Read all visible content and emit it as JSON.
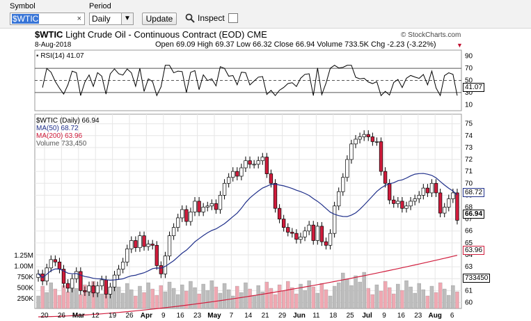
{
  "controls": {
    "symbol_label": "Symbol",
    "symbol_value": "$WTIC",
    "symbol_clear": "×",
    "period_label": "Period",
    "period_value": "Daily",
    "update_label": "Update",
    "inspect_label": "Inspect",
    "inspect_checked": false
  },
  "header": {
    "ticker": "$WTIC",
    "name": "Light Crude Oil - Continuous Contract (EOD)",
    "exchange": "CME",
    "copyright": "© StockCharts.com",
    "date": "8-Aug-2018",
    "ohlc": "Open 69.09  High 69.37  Low 66.32  Close 66.94  Volume 733.5K  Chg -2.23 (-3.22%)"
  },
  "rsi": {
    "label": "RSI(14) 41.07",
    "value_box": "41.07",
    "ticks": [
      "90",
      "70",
      "50",
      "30",
      "10"
    ]
  },
  "legend": {
    "price": "$WTIC (Daily) 66.94",
    "ma50": "MA(50) 68.72",
    "ma200": "MA(200) 63.96",
    "volume": "Volume 733,450"
  },
  "value_boxes": {
    "ma50": "68.72",
    "close": "66.94",
    "ma200": "63.96",
    "volume": "733450"
  },
  "price_ticks": [
    "75",
    "74",
    "73",
    "72",
    "71",
    "70",
    "69",
    "68",
    "67",
    "66",
    "65",
    "64",
    "63",
    "62",
    "61",
    "60"
  ],
  "volume_ticks": [
    "1.25M",
    "1.00M",
    "750K",
    "500K",
    "250K"
  ],
  "x_labels": [
    "20",
    "26",
    "Mar",
    "12",
    "19",
    "26",
    "Apr",
    "9",
    "16",
    "23",
    "May",
    "7",
    "14",
    "21",
    "29",
    "Jun",
    "11",
    "18",
    "25",
    "Jul",
    "9",
    "16",
    "23",
    "Aug",
    "6"
  ],
  "colors": {
    "up": "#ffffff",
    "down": "#d01c3c",
    "ma50": "#1f2f8a",
    "ma200": "#d01c3c",
    "vol_up": "#bdbdbd",
    "vol_down": "#f0a8b2",
    "grid": "#e6e6e6"
  },
  "chart_data": {
    "type": "candlestick",
    "title": "$WTIC Light Crude Oil - Continuous Contract (EOD) CME",
    "ylim": [
      59.5,
      75.8
    ],
    "series": [
      {
        "name": "$WTIC (Daily)",
        "close": [
          62.4,
          61.8,
          62.9,
          63.6,
          63.4,
          62.8,
          61.6,
          61.2,
          62.0,
          62.6,
          61.0,
          60.9,
          61.4,
          60.8,
          61.4,
          61.9,
          60.7,
          61.3,
          62.3,
          62.8,
          63.4,
          64.5,
          65.2,
          64.6,
          65.6,
          64.7,
          64.9,
          64.8,
          63.1,
          62.4,
          63.9,
          65.6,
          66.3,
          67.1,
          67.8,
          66.8,
          67.6,
          68.5,
          67.6,
          68.0,
          68.1,
          68.3,
          67.8,
          69.0,
          70.0,
          70.5,
          71.0,
          70.6,
          71.3,
          71.9,
          71.6,
          71.6,
          71.9,
          72.2,
          70.8,
          70.0,
          67.9,
          67.0,
          66.3,
          65.9,
          65.8,
          65.3,
          65.5,
          66.0,
          66.5,
          65.2,
          66.4,
          65.1,
          64.8,
          65.8,
          68.1,
          69.3,
          70.5,
          72.0,
          73.3,
          73.7,
          73.9,
          74.1,
          73.9,
          73.5,
          73.5,
          71.0,
          70.0,
          68.6,
          68.3,
          68.5,
          67.9,
          68.1,
          68.5,
          68.7,
          69.0,
          69.6,
          69.2,
          70.0,
          69.2,
          67.5,
          68.0,
          68.7,
          69.2,
          66.9
        ]
      },
      {
        "name": "MA(50)",
        "values_start": 63.0,
        "values_end": 68.72
      },
      {
        "name": "MA(200)",
        "values_start": 58.8,
        "values_end": 63.96
      },
      {
        "name": "Volume",
        "last": 733450
      }
    ]
  }
}
